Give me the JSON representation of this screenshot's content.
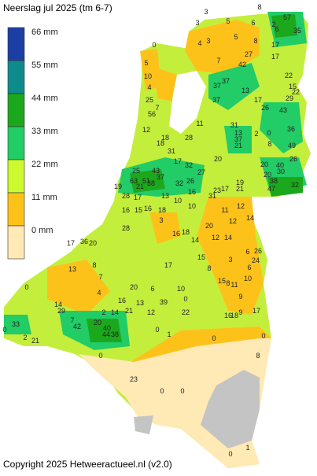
{
  "title": "Neerslag jul 2025 (tm 6-7)",
  "copyright": "Copyright 2025 Hetweeractueel.nl (v2.0)",
  "legend": [
    {
      "label": "66 mm",
      "color": "#1c3fa6"
    },
    {
      "label": "55 mm",
      "color": "#0e8c8c"
    },
    {
      "label": "44 mm",
      "color": "#1ca81c"
    },
    {
      "label": "33 mm",
      "color": "#22cc66"
    },
    {
      "label": "22 mm",
      "color": "#ccfa2e"
    },
    {
      "label": "11 mm",
      "color": "#fdc21a"
    },
    {
      "label": "0 mm",
      "color": "#ffe9b4"
    }
  ],
  "stations": [
    8,
    3,
    5,
    6,
    3,
    57,
    2,
    6,
    35,
    4,
    3,
    5,
    8,
    17,
    0,
    5,
    7,
    27,
    42,
    17,
    10,
    4,
    37,
    37,
    22,
    13,
    25,
    7,
    56,
    37,
    15,
    22,
    17,
    26,
    43,
    29,
    11,
    12,
    2,
    0,
    36,
    31,
    13,
    37,
    21,
    18,
    18,
    28,
    49,
    8,
    31,
    17,
    32,
    27,
    26,
    20,
    20,
    26,
    25,
    43,
    37,
    63,
    51,
    19,
    21,
    38,
    32,
    40,
    30,
    20,
    38,
    47,
    32,
    19,
    21,
    23,
    31,
    17,
    16,
    28,
    17,
    13,
    10,
    10,
    16,
    15,
    16,
    18,
    12,
    11,
    12,
    14,
    3,
    28,
    16,
    18,
    20,
    12,
    14,
    17,
    36,
    20,
    14,
    6,
    26,
    24,
    13,
    8,
    7,
    17,
    3,
    15,
    8,
    6,
    10,
    15,
    8,
    11,
    0,
    4,
    20,
    6,
    10,
    9,
    16,
    13,
    39,
    0,
    2,
    21,
    12,
    22,
    14,
    29,
    14,
    9,
    17,
    16,
    18,
    7,
    42,
    33,
    20,
    40,
    44,
    38,
    0,
    0,
    2,
    21,
    0,
    1,
    0,
    0,
    23,
    0,
    0,
    0,
    1,
    8
  ]
}
